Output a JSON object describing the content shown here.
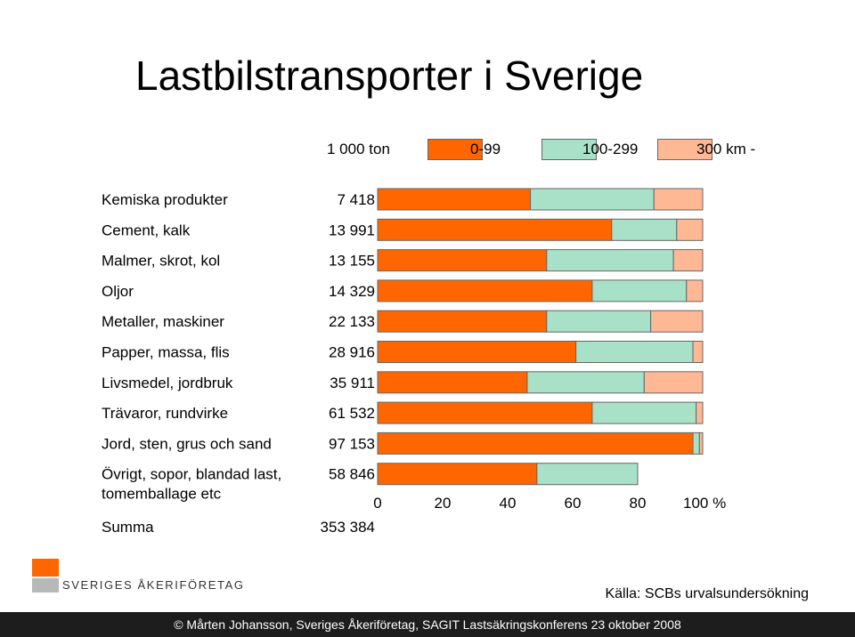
{
  "title": "Lastbilstransporter i Sverige",
  "legend": {
    "unit_header": "1 000 ton",
    "items": [
      {
        "label": "0-99",
        "color": "#ff6600"
      },
      {
        "label": "100-299",
        "color": "#a8e0c8"
      },
      {
        "label": "300 km -",
        "color": "#ffb894"
      }
    ]
  },
  "chart_data": {
    "type": "bar",
    "orientation": "horizontal",
    "stacked": true,
    "percent": true,
    "categories": [
      "Kemiska produkter",
      "Cement, kalk",
      "Malmer, skrot, kol",
      "Oljor",
      "Metaller, maskiner",
      "Papper, massa, flis",
      "Livsmedel, jordbruk",
      "Trävaror, rundvirke",
      "Jord, sten, grus och sand",
      "Övrigt, sopor, blandad last, tomemballage etc"
    ],
    "tonnage": [
      "7 418",
      "13 991",
      "13 155",
      "14 329",
      "22 133",
      "28 916",
      "35 911",
      "61 532",
      "97 153",
      "58 846"
    ],
    "series": [
      {
        "name": "0-99",
        "color": "#ff6600",
        "values": [
          47,
          72,
          52,
          66,
          52,
          61,
          46,
          66,
          97,
          49
        ]
      },
      {
        "name": "100-299",
        "color": "#a8e0c8",
        "values": [
          38,
          20,
          39,
          29,
          32,
          36,
          36,
          32,
          2,
          31
        ]
      },
      {
        "name": "300 km -",
        "color": "#ffb894",
        "values": [
          15,
          8,
          9,
          5,
          16,
          3,
          18,
          2,
          1,
          0
        ]
      }
    ],
    "xlim": [
      0,
      100
    ],
    "xticks": [
      "0",
      "20",
      "40",
      "60",
      "80",
      "100 %"
    ],
    "summary_label": "Summa",
    "summary_value": "353 384"
  },
  "logo_text": "SVERIGES ÅKERIFÖRETAG",
  "source": "Källa: SCBs urvalsundersökning",
  "footer": "© Mårten Johansson, Sveriges Åkeriföretag, SAGIT Lastsäkringskonferens 23 oktober 2008"
}
